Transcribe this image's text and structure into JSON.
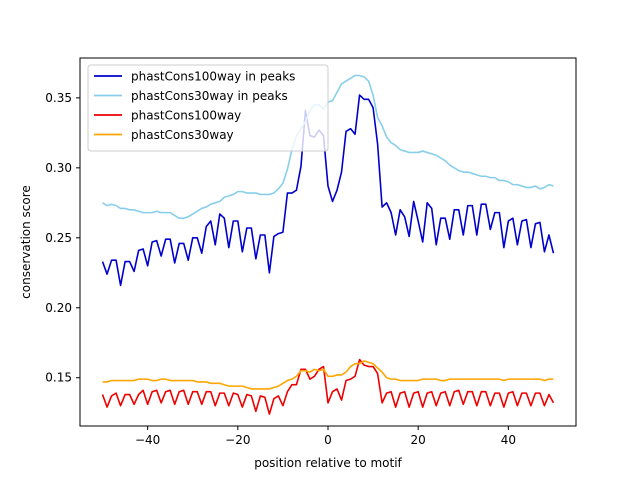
{
  "chart_data": {
    "type": "line",
    "title": "",
    "xlabel": "position relative to motif",
    "ylabel": "conservation score",
    "xlim": [
      -55,
      55
    ],
    "ylim": [
      0.1155,
      0.3785
    ],
    "xticks": [
      -40,
      -20,
      0,
      20,
      40
    ],
    "xtick_labels": [
      "−40",
      "−20",
      "0",
      "20",
      "40"
    ],
    "yticks": [
      0.15,
      0.2,
      0.25,
      0.3,
      0.35
    ],
    "ytick_labels": [
      "0.15",
      "0.20",
      "0.25",
      "0.30",
      "0.35"
    ],
    "grid": false,
    "legend_position": "top-left",
    "x": [
      -50,
      -49,
      -48,
      -47,
      -46,
      -45,
      -44,
      -43,
      -42,
      -41,
      -40,
      -39,
      -38,
      -37,
      -36,
      -35,
      -34,
      -33,
      -32,
      -31,
      -30,
      -29,
      -28,
      -27,
      -26,
      -25,
      -24,
      -23,
      -22,
      -21,
      -20,
      -19,
      -18,
      -17,
      -16,
      -15,
      -14,
      -13,
      -12,
      -11,
      -10,
      -9,
      -8,
      -7,
      -6,
      -5,
      -4,
      -3,
      -2,
      -1,
      0,
      1,
      2,
      3,
      4,
      5,
      6,
      7,
      8,
      9,
      10,
      11,
      12,
      13,
      14,
      15,
      16,
      17,
      18,
      19,
      20,
      21,
      22,
      23,
      24,
      25,
      26,
      27,
      28,
      29,
      30,
      31,
      32,
      33,
      34,
      35,
      36,
      37,
      38,
      39,
      40,
      41,
      42,
      43,
      44,
      45,
      46,
      47,
      48,
      49,
      50
    ],
    "series": [
      {
        "name": "phastCons100way in peaks",
        "color": "#0000cc",
        "values": [
          0.233,
          0.224,
          0.234,
          0.234,
          0.216,
          0.233,
          0.233,
          0.226,
          0.241,
          0.242,
          0.23,
          0.247,
          0.248,
          0.237,
          0.249,
          0.249,
          0.232,
          0.246,
          0.246,
          0.234,
          0.25,
          0.25,
          0.239,
          0.258,
          0.262,
          0.245,
          0.267,
          0.264,
          0.243,
          0.262,
          0.262,
          0.24,
          0.257,
          0.257,
          0.235,
          0.252,
          0.252,
          0.225,
          0.251,
          0.253,
          0.254,
          0.282,
          0.282,
          0.284,
          0.301,
          0.341,
          0.323,
          0.322,
          0.327,
          0.323,
          0.287,
          0.276,
          0.284,
          0.297,
          0.326,
          0.328,
          0.324,
          0.352,
          0.349,
          0.349,
          0.343,
          0.317,
          0.272,
          0.275,
          0.268,
          0.252,
          0.27,
          0.265,
          0.251,
          0.276,
          0.262,
          0.247,
          0.275,
          0.271,
          0.245,
          0.264,
          0.264,
          0.249,
          0.27,
          0.27,
          0.252,
          0.273,
          0.273,
          0.252,
          0.274,
          0.274,
          0.256,
          0.268,
          0.268,
          0.243,
          0.262,
          0.264,
          0.245,
          0.262,
          0.263,
          0.243,
          0.26,
          0.261,
          0.24,
          0.252,
          0.239
        ]
      },
      {
        "name": "phastCons30way in peaks",
        "color": "#87ceeb",
        "values": [
          0.275,
          0.273,
          0.274,
          0.273,
          0.271,
          0.271,
          0.27,
          0.27,
          0.269,
          0.268,
          0.268,
          0.268,
          0.269,
          0.268,
          0.268,
          0.268,
          0.266,
          0.264,
          0.264,
          0.265,
          0.267,
          0.269,
          0.271,
          0.272,
          0.274,
          0.275,
          0.276,
          0.279,
          0.28,
          0.281,
          0.283,
          0.283,
          0.282,
          0.282,
          0.282,
          0.281,
          0.281,
          0.281,
          0.282,
          0.285,
          0.289,
          0.299,
          0.313,
          0.323,
          0.328,
          0.333,
          0.341,
          0.345,
          0.345,
          0.342,
          0.347,
          0.348,
          0.354,
          0.36,
          0.362,
          0.364,
          0.366,
          0.366,
          0.365,
          0.362,
          0.352,
          0.336,
          0.33,
          0.322,
          0.318,
          0.316,
          0.313,
          0.312,
          0.311,
          0.311,
          0.311,
          0.312,
          0.311,
          0.31,
          0.309,
          0.307,
          0.305,
          0.302,
          0.3,
          0.298,
          0.297,
          0.297,
          0.296,
          0.295,
          0.294,
          0.294,
          0.293,
          0.293,
          0.291,
          0.291,
          0.29,
          0.288,
          0.288,
          0.287,
          0.286,
          0.286,
          0.287,
          0.285,
          0.286,
          0.288,
          0.287
        ]
      },
      {
        "name": "phastCons100way",
        "color": "#ee0000",
        "values": [
          0.138,
          0.129,
          0.137,
          0.139,
          0.13,
          0.138,
          0.138,
          0.131,
          0.138,
          0.141,
          0.131,
          0.14,
          0.141,
          0.132,
          0.14,
          0.141,
          0.131,
          0.14,
          0.141,
          0.131,
          0.14,
          0.14,
          0.131,
          0.14,
          0.14,
          0.13,
          0.139,
          0.139,
          0.13,
          0.139,
          0.138,
          0.129,
          0.138,
          0.137,
          0.126,
          0.137,
          0.136,
          0.124,
          0.135,
          0.137,
          0.13,
          0.14,
          0.145,
          0.145,
          0.156,
          0.156,
          0.149,
          0.151,
          0.156,
          0.158,
          0.132,
          0.14,
          0.142,
          0.134,
          0.148,
          0.149,
          0.151,
          0.163,
          0.159,
          0.158,
          0.158,
          0.153,
          0.132,
          0.139,
          0.14,
          0.129,
          0.139,
          0.14,
          0.129,
          0.139,
          0.14,
          0.129,
          0.139,
          0.14,
          0.13,
          0.139,
          0.14,
          0.13,
          0.14,
          0.141,
          0.131,
          0.14,
          0.14,
          0.13,
          0.14,
          0.14,
          0.13,
          0.139,
          0.139,
          0.129,
          0.139,
          0.14,
          0.13,
          0.139,
          0.139,
          0.13,
          0.139,
          0.139,
          0.13,
          0.138,
          0.132
        ]
      },
      {
        "name": "phastCons30way",
        "color": "#ffa500",
        "values": [
          0.147,
          0.147,
          0.148,
          0.148,
          0.148,
          0.148,
          0.148,
          0.148,
          0.149,
          0.149,
          0.149,
          0.148,
          0.148,
          0.149,
          0.149,
          0.148,
          0.148,
          0.148,
          0.148,
          0.148,
          0.148,
          0.147,
          0.147,
          0.147,
          0.146,
          0.146,
          0.146,
          0.145,
          0.144,
          0.144,
          0.144,
          0.144,
          0.143,
          0.142,
          0.142,
          0.142,
          0.142,
          0.142,
          0.143,
          0.144,
          0.146,
          0.148,
          0.149,
          0.151,
          0.155,
          0.155,
          0.154,
          0.156,
          0.155,
          0.156,
          0.151,
          0.151,
          0.152,
          0.152,
          0.154,
          0.158,
          0.16,
          0.16,
          0.162,
          0.161,
          0.16,
          0.157,
          0.154,
          0.15,
          0.149,
          0.149,
          0.148,
          0.148,
          0.148,
          0.148,
          0.148,
          0.149,
          0.149,
          0.149,
          0.149,
          0.148,
          0.148,
          0.149,
          0.149,
          0.149,
          0.149,
          0.149,
          0.149,
          0.149,
          0.149,
          0.149,
          0.149,
          0.149,
          0.149,
          0.148,
          0.149,
          0.149,
          0.149,
          0.149,
          0.149,
          0.149,
          0.149,
          0.149,
          0.148,
          0.149,
          0.149
        ]
      }
    ]
  }
}
